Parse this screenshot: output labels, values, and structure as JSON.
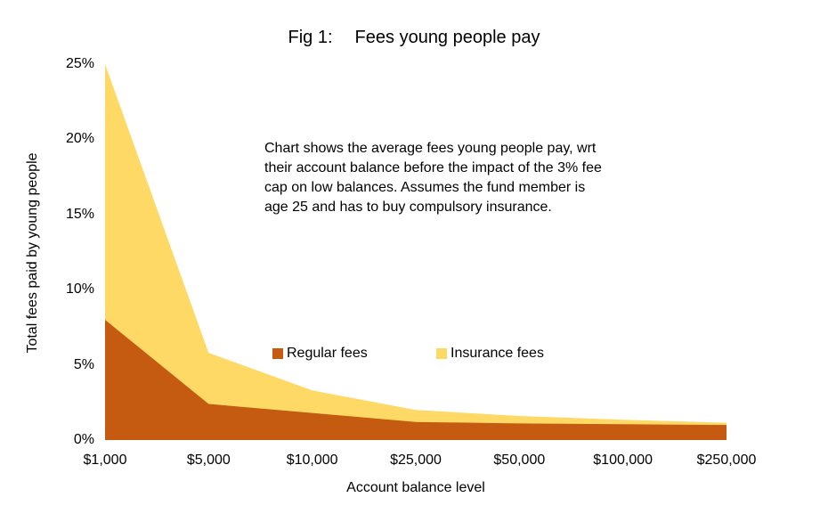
{
  "title": {
    "prefix": "Fig 1:",
    "main": "Fees young people pay"
  },
  "annotation": {
    "lines": [
      "Chart shows the average fees young people pay, wrt",
      "their account balance before the impact of the 3% fee",
      "cap on low balances. Assumes the fund member is",
      "age 25 and has to buy compulsory insurance."
    ]
  },
  "chart_data": {
    "type": "area",
    "stacked": true,
    "title": "Fig 1: Fees young people pay",
    "categories": [
      "$1,000",
      "$5,000",
      "$10,000",
      "$25,000",
      "$50,000",
      "$100,000",
      "$250,000"
    ],
    "series": [
      {
        "name": "Regular fees",
        "color": "#C55A11",
        "values": [
          8.0,
          2.4,
          1.8,
          1.2,
          1.1,
          1.05,
          1.0
        ]
      },
      {
        "name": "Insurance fees",
        "color": "#FFD966",
        "values": [
          17.0,
          3.4,
          1.5,
          0.8,
          0.5,
          0.3,
          0.15
        ]
      }
    ],
    "xlabel": "Account balance level",
    "ylabel": "Total fees paid by young people",
    "ylim": [
      0,
      25
    ],
    "yticks": [
      {
        "value": 0,
        "label": "0%"
      },
      {
        "value": 5,
        "label": "5%"
      },
      {
        "value": 10,
        "label": "10%"
      },
      {
        "value": 15,
        "label": "15%"
      },
      {
        "value": 20,
        "label": "20%"
      },
      {
        "value": 25,
        "label": "25%"
      }
    ],
    "grid": false,
    "legend_position": "inside-plot-middle"
  },
  "colors": {
    "background": "#FFFFFF",
    "text": "#000000"
  }
}
